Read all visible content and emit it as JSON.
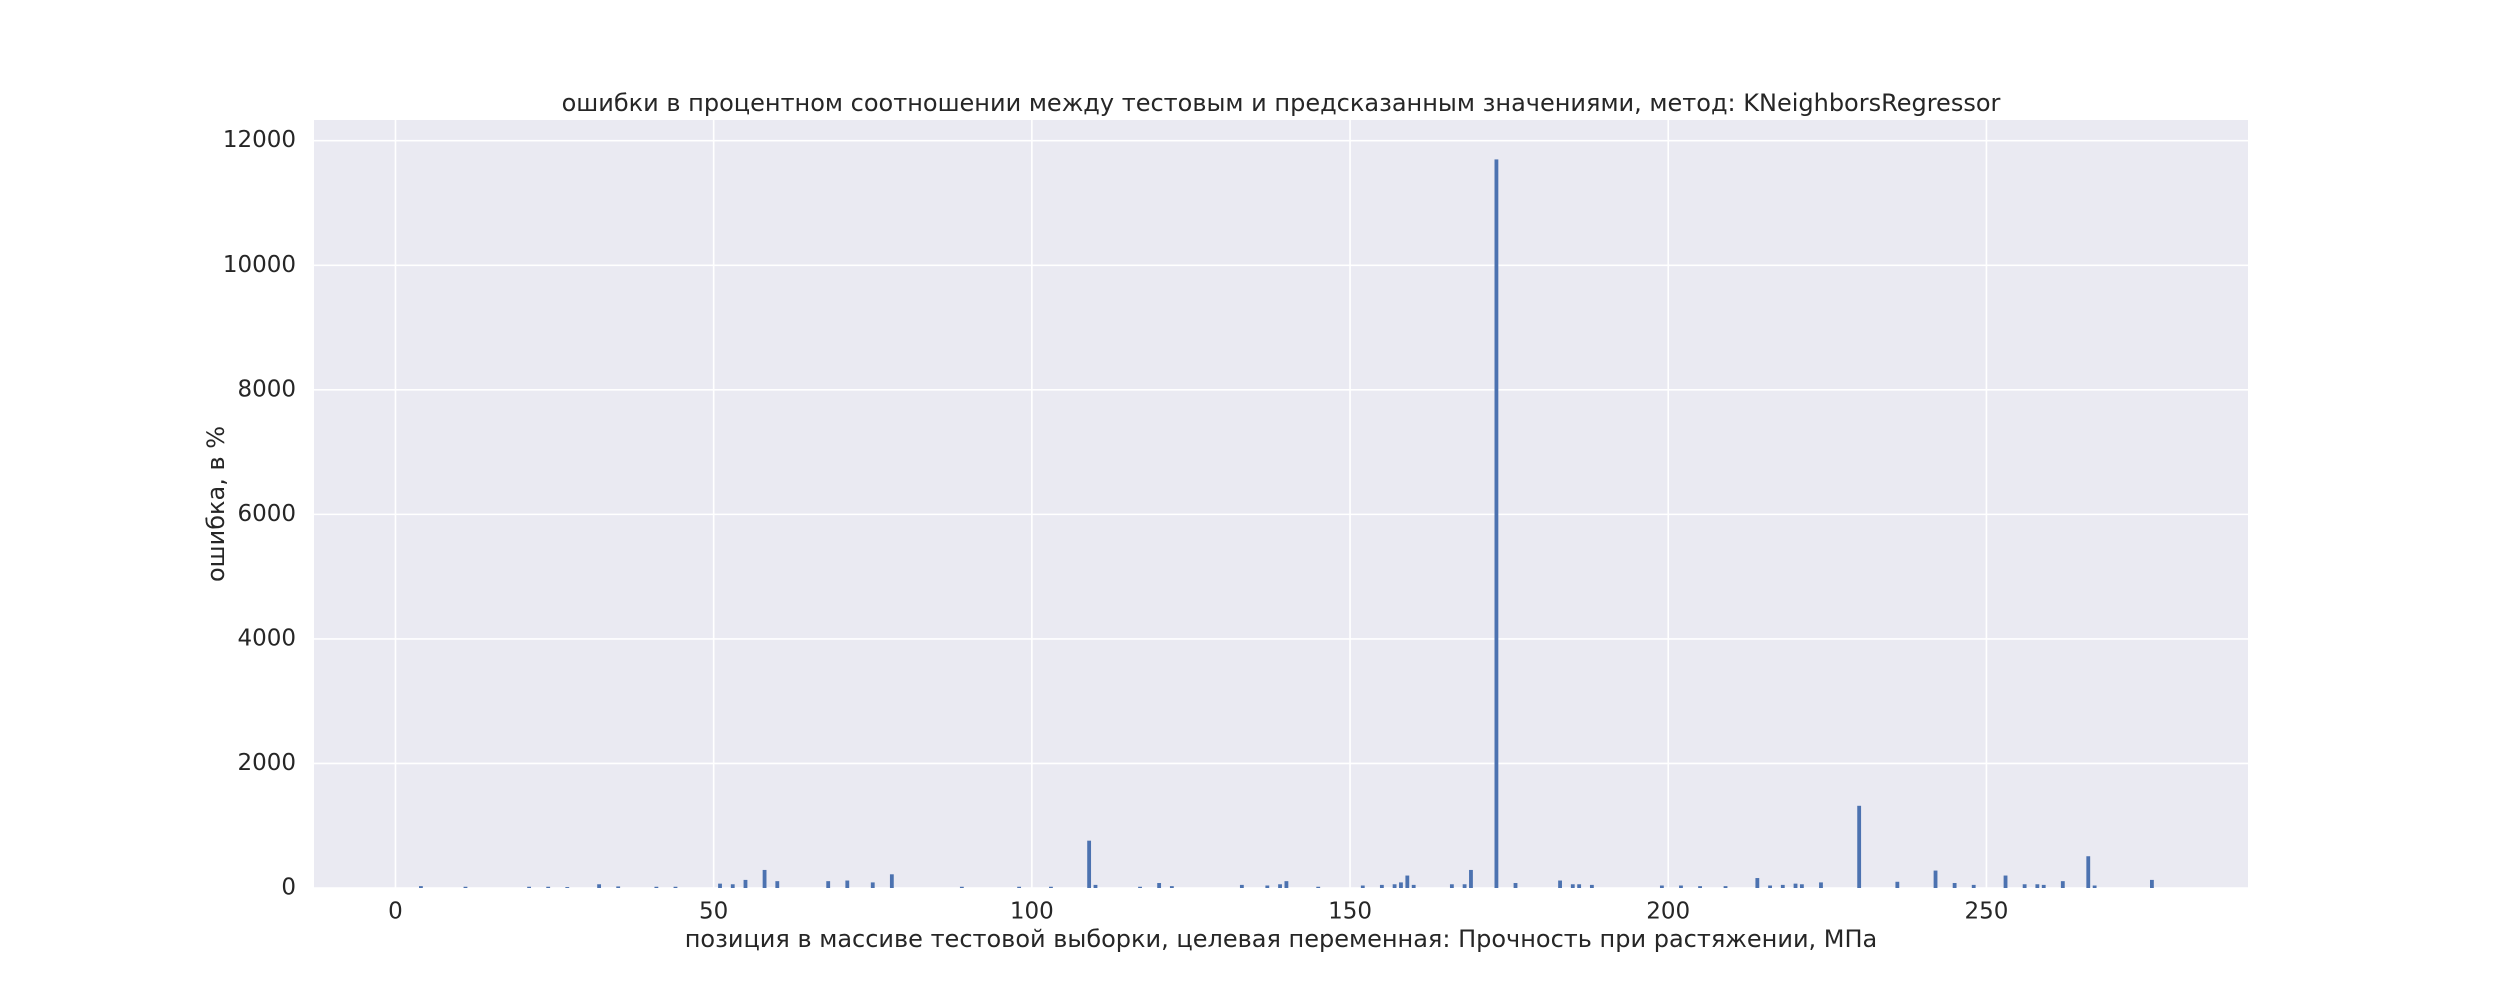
{
  "chart_data": {
    "type": "bar",
    "title": "ошибки в процентном соотношении между тестовым и предсказанным значениями, метод: KNeighborsRegressor",
    "x_label": "позиция в массиве тестовой выборки, целевая переменная: Прочность при растяжении, МПа",
    "y_label": "ошибка, в %",
    "color": "#4c72b0",
    "x": [
      4,
      11,
      21,
      24,
      27,
      32,
      35,
      41,
      44,
      51,
      53,
      55,
      58,
      60,
      68,
      71,
      75,
      78,
      89,
      98,
      103,
      109,
      110,
      117,
      120,
      122,
      133,
      137,
      139,
      140,
      145,
      152,
      155,
      157,
      158,
      159,
      160,
      166,
      168,
      169,
      173,
      176,
      183,
      185,
      186,
      188,
      199,
      202,
      205,
      209,
      214,
      216,
      218,
      220,
      221,
      224,
      230,
      236,
      242,
      245,
      248,
      253,
      256,
      258,
      259,
      262,
      266,
      267,
      276
    ],
    "values": [
      30,
      20,
      20,
      20,
      15,
      60,
      25,
      20,
      20,
      70,
      60,
      130,
      290,
      110,
      110,
      120,
      90,
      220,
      20,
      20,
      20,
      760,
      50,
      20,
      80,
      30,
      50,
      40,
      60,
      110,
      20,
      40,
      50,
      60,
      90,
      200,
      50,
      60,
      60,
      290,
      11700,
      80,
      120,
      60,
      60,
      50,
      40,
      40,
      30,
      30,
      160,
      40,
      50,
      70,
      60,
      90,
      1320,
      100,
      280,
      80,
      50,
      200,
      60,
      60,
      50,
      110,
      510,
      40,
      130
    ],
    "xlim": [
      -12.8,
      291.1
    ],
    "ylim": [
      0,
      12333
    ],
    "xticks": [
      0,
      50,
      100,
      150,
      200,
      250
    ],
    "yticks": [
      0,
      2000,
      4000,
      6000,
      8000,
      10000,
      12000
    ],
    "grid": true
  }
}
